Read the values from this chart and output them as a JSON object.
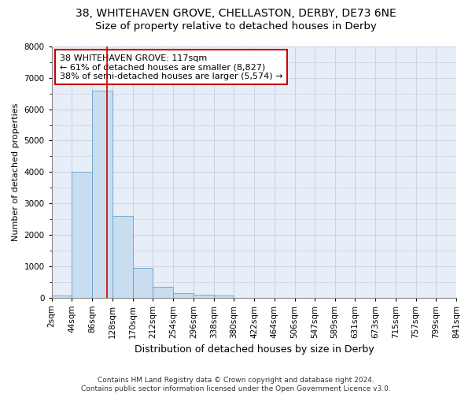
{
  "title1": "38, WHITEHAVEN GROVE, CHELLASTON, DERBY, DE73 6NE",
  "title2": "Size of property relative to detached houses in Derby",
  "xlabel": "Distribution of detached houses by size in Derby",
  "ylabel": "Number of detached properties",
  "footer1": "Contains HM Land Registry data © Crown copyright and database right 2024.",
  "footer2": "Contains public sector information licensed under the Open Government Licence v3.0.",
  "annotation_line1": "38 WHITEHAVEN GROVE: 117sqm",
  "annotation_line2": "← 61% of detached houses are smaller (8,827)",
  "annotation_line3": "38% of semi-detached houses are larger (5,574) →",
  "bar_edges": [
    2,
    44,
    86,
    128,
    170,
    212,
    254,
    296,
    338,
    380,
    422,
    464,
    506,
    547,
    589,
    631,
    673,
    715,
    757,
    799,
    841
  ],
  "bar_heights": [
    60,
    4000,
    6600,
    2600,
    950,
    330,
    130,
    100,
    60,
    0,
    0,
    0,
    0,
    0,
    0,
    0,
    0,
    0,
    0,
    0
  ],
  "bar_color": "#c9ddf0",
  "bar_edge_color": "#6b9fc8",
  "grid_color": "#c8d4e8",
  "bg_color": "#e8eef8",
  "vline_x": 117,
  "vline_color": "#cc0000",
  "annotation_box_color": "#cc0000",
  "ylim": [
    0,
    8000
  ],
  "yticks": [
    0,
    1000,
    2000,
    3000,
    4000,
    5000,
    6000,
    7000,
    8000
  ],
  "title1_fontsize": 10,
  "title2_fontsize": 9.5,
  "ylabel_fontsize": 8,
  "xlabel_fontsize": 9,
  "tick_fontsize": 7.5,
  "annotation_fontsize": 8,
  "footer_fontsize": 6.5
}
